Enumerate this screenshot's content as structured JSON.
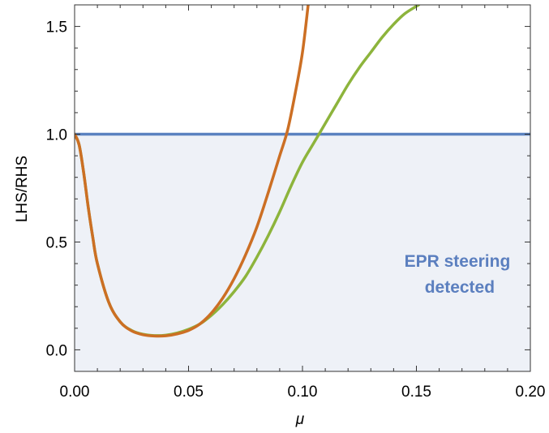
{
  "chart_data": {
    "type": "line",
    "title": "",
    "xlabel": "μ",
    "ylabel": "LHS/RHS",
    "xlim": [
      0,
      0.2
    ],
    "ylim": [
      -0.1,
      1.6
    ],
    "x_ticks": [
      0,
      0.05,
      0.1,
      0.15,
      0.2
    ],
    "x_tick_labels": [
      "0.00",
      "0.05",
      "0.10",
      "0.15",
      "0.20"
    ],
    "y_ticks": [
      0,
      0.5,
      1.0,
      1.5
    ],
    "y_tick_labels": [
      "0.0",
      "0.5",
      "1.0",
      "1.5"
    ],
    "grid": false,
    "shaded_region": {
      "y_from": -0.1,
      "y_to": 1.0,
      "color": "#eef1f7"
    },
    "annotation": {
      "lines": [
        "EPR steering",
        "detected"
      ],
      "x": 0.169,
      "y": 0.34,
      "color": "#5b7fbf"
    },
    "series": [
      {
        "color": "#5b82c0",
        "x": [
          0,
          0.2
        ],
        "y": [
          1.0,
          1.0
        ]
      },
      {
        "color": "#8db43c",
        "x": [
          0,
          0.002,
          0.004,
          0.006,
          0.008,
          0.01,
          0.015,
          0.02,
          0.025,
          0.03,
          0.035,
          0.04,
          0.045,
          0.05,
          0.055,
          0.06,
          0.065,
          0.07,
          0.075,
          0.08,
          0.085,
          0.09,
          0.095,
          0.1,
          0.105,
          0.11,
          0.115,
          0.12,
          0.125,
          0.13,
          0.135,
          0.14,
          0.145,
          0.151
        ],
        "y": [
          1.0,
          0.95,
          0.82,
          0.66,
          0.52,
          0.4,
          0.22,
          0.13,
          0.09,
          0.072,
          0.066,
          0.068,
          0.078,
          0.095,
          0.12,
          0.16,
          0.21,
          0.27,
          0.34,
          0.43,
          0.53,
          0.64,
          0.76,
          0.87,
          0.96,
          1.05,
          1.14,
          1.23,
          1.31,
          1.38,
          1.45,
          1.51,
          1.56,
          1.6
        ]
      },
      {
        "color": "#cc6f24",
        "x": [
          0,
          0.002,
          0.004,
          0.006,
          0.008,
          0.01,
          0.015,
          0.02,
          0.025,
          0.03,
          0.035,
          0.04,
          0.045,
          0.05,
          0.055,
          0.06,
          0.065,
          0.07,
          0.075,
          0.08,
          0.085,
          0.09,
          0.0935,
          0.097,
          0.1,
          0.1025
        ],
        "y": [
          1.0,
          0.95,
          0.82,
          0.66,
          0.52,
          0.4,
          0.22,
          0.13,
          0.088,
          0.07,
          0.064,
          0.065,
          0.074,
          0.09,
          0.12,
          0.17,
          0.24,
          0.33,
          0.44,
          0.57,
          0.73,
          0.9,
          1.02,
          1.2,
          1.38,
          1.6
        ]
      }
    ]
  }
}
